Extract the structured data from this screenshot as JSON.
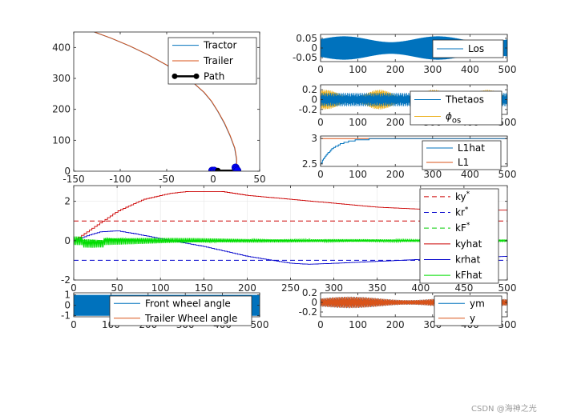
{
  "watermark": "CSDN @海神之光",
  "chart_data": [
    {
      "id": "trajectory",
      "type": "line",
      "xlim": [
        -150,
        50
      ],
      "ylim": [
        0,
        450
      ],
      "x_ticks": [
        "-150",
        "-100",
        "-50",
        "0",
        "50"
      ],
      "y_ticks": [
        "0",
        "100",
        "200",
        "300",
        "400"
      ],
      "legend": [
        "Tractor",
        "Trailer",
        "Path"
      ],
      "series": [
        {
          "name": "Tractor",
          "color": "#0072BD",
          "points": [
            [
              -128,
              450
            ],
            [
              -110,
              430
            ],
            [
              -90,
              405
            ],
            [
              -70,
              376
            ],
            [
              -50,
              343
            ],
            [
              -35,
              315
            ],
            [
              -20,
              282
            ],
            [
              -10,
              255
            ],
            [
              -2,
              226
            ],
            [
              5,
              193
            ],
            [
              12,
              155
            ],
            [
              18,
              115
            ],
            [
              23,
              75
            ],
            [
              25,
              40
            ],
            [
              25,
              12
            ]
          ]
        },
        {
          "name": "Trailer",
          "color": "#D95319",
          "points": [
            [
              -128,
              450
            ],
            [
              -110,
              430
            ],
            [
              -90,
              405
            ],
            [
              -70,
              376
            ],
            [
              -50,
              343
            ],
            [
              -35,
              315
            ],
            [
              -20,
              282
            ],
            [
              -10,
              255
            ],
            [
              -2,
              226
            ],
            [
              5,
              193
            ],
            [
              12,
              155
            ],
            [
              18,
              115
            ],
            [
              23,
              75
            ],
            [
              25,
              40
            ],
            [
              25,
              12
            ]
          ]
        },
        {
          "name": "Path",
          "color": "#000000",
          "points": [
            [
              0,
              2
            ],
            [
              5,
              2
            ],
            [
              25,
              2
            ],
            [
              25,
              12
            ]
          ]
        }
      ]
    },
    {
      "id": "los",
      "type": "line",
      "xlim": [
        0,
        500
      ],
      "ylim": [
        -0.07,
        0.07
      ],
      "x_ticks": [
        "0",
        "100",
        "200",
        "300",
        "400",
        "500"
      ],
      "y_ticks": [
        "0.05",
        "0",
        "-0.05"
      ],
      "legend": [
        "Los"
      ],
      "series": [
        {
          "name": "Los",
          "color": "#0072BD",
          "amplitude": 0.06
        }
      ]
    },
    {
      "id": "thetaos",
      "type": "line",
      "xlim": [
        0,
        500
      ],
      "ylim": [
        -0.3,
        0.3
      ],
      "x_ticks": [
        "0",
        "100",
        "200",
        "300",
        "400",
        "500"
      ],
      "y_ticks": [
        "0.2",
        "0",
        "-0.2"
      ],
      "legend": [
        "Thetaos",
        "ϕos"
      ],
      "series": [
        {
          "name": "Thetaos",
          "color": "#0072BD",
          "amplitude": 0.2
        },
        {
          "name": "ϕos",
          "color": "#EDB120",
          "amplitude": 0.2
        }
      ]
    },
    {
      "id": "l1",
      "type": "line",
      "xlim": [
        0,
        500
      ],
      "ylim": [
        2.45,
        3.05
      ],
      "x_ticks": [
        "0",
        "100",
        "200",
        "300",
        "400",
        "500"
      ],
      "y_ticks": [
        "3",
        "2.5"
      ],
      "legend": [
        "L1hat",
        "L1"
      ],
      "series": [
        {
          "name": "L1hat",
          "color": "#0072BD",
          "start": 2.5,
          "end": 3.0
        },
        {
          "name": "L1",
          "color": "#D95319",
          "value": 3.0
        }
      ]
    },
    {
      "id": "gains",
      "type": "line",
      "xlim": [
        0,
        500
      ],
      "ylim": [
        -2,
        2.8
      ],
      "x_ticks": [
        "0",
        "50",
        "100",
        "150",
        "200",
        "250",
        "300",
        "350",
        "400",
        "450",
        "500"
      ],
      "y_ticks": [
        "2",
        "0",
        "-2"
      ],
      "legend": [
        "ky*",
        "kr*",
        "kF*",
        "kyhat",
        "krhat",
        "kFhat"
      ],
      "series": [
        {
          "name": "ky*",
          "color": "#CC0000",
          "dashed": true,
          "value": 1
        },
        {
          "name": "kr*",
          "color": "#0000CC",
          "dashed": true,
          "value": -1
        },
        {
          "name": "kF*",
          "color": "#00CC00",
          "dashed": true,
          "value": 0
        },
        {
          "name": "kyhat",
          "color": "#CC0000",
          "points": [
            [
              0,
              0
            ],
            [
              20,
              0.6
            ],
            [
              50,
              1.5
            ],
            [
              80,
              2.1
            ],
            [
              110,
              2.4
            ],
            [
              130,
              2.5
            ],
            [
              170,
              2.5
            ],
            [
              200,
              2.3
            ],
            [
              250,
              2.1
            ],
            [
              300,
              1.9
            ],
            [
              350,
              1.7
            ],
            [
              400,
              1.6
            ],
            [
              450,
              1.55
            ],
            [
              500,
              1.55
            ]
          ]
        },
        {
          "name": "krhat",
          "color": "#0000CC",
          "points": [
            [
              0,
              0
            ],
            [
              15,
              0.25
            ],
            [
              30,
              0.45
            ],
            [
              50,
              0.5
            ],
            [
              70,
              0.35
            ],
            [
              100,
              0.1
            ],
            [
              150,
              -0.3
            ],
            [
              200,
              -0.8
            ],
            [
              250,
              -1.15
            ],
            [
              270,
              -1.2
            ],
            [
              300,
              -1.15
            ],
            [
              350,
              -1.05
            ],
            [
              400,
              -0.95
            ],
            [
              450,
              -0.85
            ],
            [
              500,
              -0.8
            ]
          ]
        },
        {
          "name": "kFhat",
          "color": "#00DD00",
          "decay": true
        }
      ]
    },
    {
      "id": "wheel",
      "type": "line",
      "xlim": [
        0,
        500
      ],
      "ylim": [
        -1.1,
        1.2
      ],
      "x_ticks": [
        "0",
        "100",
        "200",
        "300",
        "400",
        "500"
      ],
      "y_ticks": [
        "1",
        "0",
        "-1"
      ],
      "legend": [
        "Front wheel angle",
        "Trailer Wheel angle"
      ],
      "series": [
        {
          "name": "Front wheel angle",
          "color": "#0072BD",
          "amplitude": 1.0
        },
        {
          "name": "Trailer Wheel angle",
          "color": "#D95319",
          "amplitude": 0.3
        }
      ]
    },
    {
      "id": "ym",
      "type": "line",
      "xlim": [
        0,
        500
      ],
      "ylim": [
        -0.3,
        0.2
      ],
      "x_ticks": [
        "0",
        "100",
        "200",
        "300",
        "400",
        "500"
      ],
      "y_ticks": [
        "0.2",
        "0",
        "-0.2"
      ],
      "legend": [
        "ym",
        "y"
      ],
      "series": [
        {
          "name": "ym",
          "color": "#0072BD",
          "amplitude": 0.12
        },
        {
          "name": "y",
          "color": "#D95319",
          "amplitude": 0.12
        }
      ]
    }
  ]
}
